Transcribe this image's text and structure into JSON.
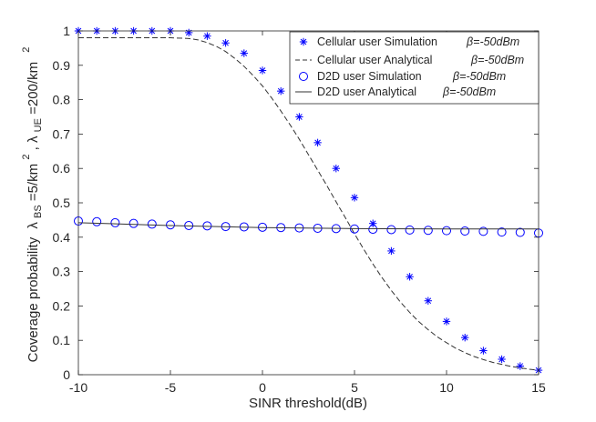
{
  "chart_data": {
    "type": "line",
    "title": "",
    "xlabel": "SINR threshold(dB)",
    "ylabel_parts": {
      "main": "Coverage probability",
      "lambda_bs": "λ",
      "bs_sub": "BS",
      "bs_value": "=5/km",
      "bs_sup": "2",
      "sep": ",",
      "lambda_ue": "λ",
      "ue_sub": "UE",
      "ue_value": "=200/km",
      "ue_sup": "2"
    },
    "xlim": [
      -10,
      15
    ],
    "ylim": [
      0,
      1
    ],
    "xticks": [
      -10,
      -5,
      0,
      5,
      10,
      15
    ],
    "xtick_labels": [
      "-10",
      "-5",
      "0",
      "5",
      "10",
      "15"
    ],
    "yticks": [
      0,
      0.1,
      0.2,
      0.3,
      0.4,
      0.5,
      0.6,
      0.7,
      0.8,
      0.9,
      1
    ],
    "ytick_labels": [
      "0",
      "0.1",
      "0.2",
      "0.3",
      "0.4",
      "0.5",
      "0.6",
      "0.7",
      "0.8",
      "0.9",
      "1"
    ],
    "grid": false,
    "legend_position": "top-right",
    "series": [
      {
        "name": "Cellular user Simulation",
        "beta": "β=-50dBm",
        "style": "asterisk",
        "color": "#0000ff",
        "x": [
          -10,
          -9,
          -8,
          -7,
          -6,
          -5,
          -4,
          -3,
          -2,
          -1,
          0,
          1,
          2,
          3,
          4,
          5,
          6,
          7,
          8,
          9,
          10,
          11,
          12,
          13,
          14,
          15
        ],
        "y": [
          1.0,
          1.0,
          1.0,
          1.0,
          1.0,
          1.0,
          0.995,
          0.985,
          0.965,
          0.935,
          0.885,
          0.825,
          0.75,
          0.675,
          0.6,
          0.515,
          0.44,
          0.36,
          0.285,
          0.215,
          0.155,
          0.108,
          0.07,
          0.045,
          0.025,
          0.013
        ]
      },
      {
        "name": "Cellular user Analytical",
        "beta": "β=-50dBm",
        "style": "dashed",
        "color": "#333333",
        "x": [
          -10,
          -9,
          -8,
          -7,
          -6,
          -5,
          -4,
          -3.5,
          -3,
          -2.5,
          -2,
          -1.5,
          -1,
          -0.5,
          0,
          0.5,
          1,
          1.5,
          2,
          2.5,
          3,
          3.5,
          4,
          4.5,
          5,
          5.5,
          6,
          6.5,
          7,
          7.5,
          8,
          8.5,
          9,
          9.5,
          10,
          10.5,
          11,
          11.5,
          12,
          12.5,
          13,
          13.5,
          14,
          14.5,
          15
        ],
        "y": [
          0.98,
          0.98,
          0.98,
          0.98,
          0.98,
          0.98,
          0.978,
          0.974,
          0.966,
          0.955,
          0.94,
          0.92,
          0.897,
          0.87,
          0.84,
          0.805,
          0.767,
          0.727,
          0.685,
          0.64,
          0.595,
          0.55,
          0.503,
          0.457,
          0.41,
          0.365,
          0.322,
          0.282,
          0.245,
          0.211,
          0.181,
          0.154,
          0.131,
          0.11,
          0.093,
          0.077,
          0.064,
          0.053,
          0.044,
          0.036,
          0.03,
          0.024,
          0.02,
          0.016,
          0.013
        ]
      },
      {
        "name": "D2D user Simulation",
        "beta": "β=-50dBm",
        "style": "circle",
        "color": "#0000ff",
        "x": [
          -10,
          -9,
          -8,
          -7,
          -6,
          -5,
          -4,
          -3,
          -2,
          -1,
          0,
          1,
          2,
          3,
          4,
          5,
          6,
          7,
          8,
          9,
          10,
          11,
          12,
          13,
          14,
          15
        ],
        "y": [
          0.447,
          0.445,
          0.442,
          0.44,
          0.438,
          0.436,
          0.434,
          0.433,
          0.431,
          0.43,
          0.429,
          0.428,
          0.427,
          0.426,
          0.425,
          0.424,
          0.423,
          0.422,
          0.421,
          0.42,
          0.419,
          0.418,
          0.417,
          0.415,
          0.414,
          0.412
        ]
      },
      {
        "name": "D2D user Analytical",
        "beta": "β=-50dBm",
        "style": "solid",
        "color": "#333333",
        "x": [
          -10,
          -5,
          0,
          5,
          10,
          15
        ],
        "y": [
          0.442,
          0.434,
          0.428,
          0.425,
          0.424,
          0.424
        ]
      }
    ]
  }
}
